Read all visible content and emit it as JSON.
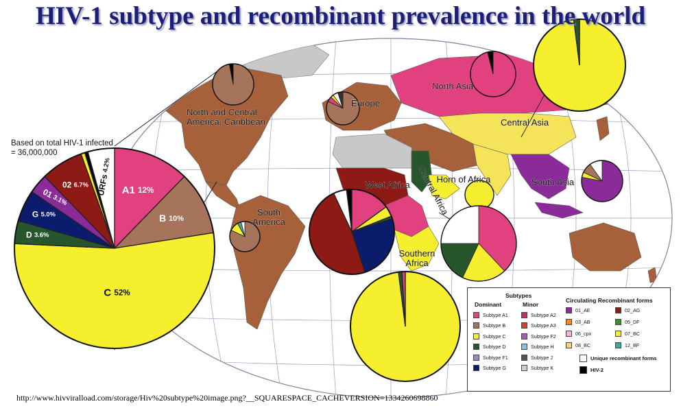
{
  "title": "HIV-1 subtype and recombinant prevalence in the world",
  "source_url": "http://www.hivviralload.com/storage/Hiv%20subtype%20image.png?__SQUARESPACE_CACHEVERSION=1334260698860",
  "chart_data": {
    "type": "pie",
    "title": "HIV-1 subtype and recombinant prevalence in the world",
    "note": "Based on total HIV-1 infected = 36,000,000",
    "global_pie": {
      "slices": [
        {
          "label": "A1",
          "value": 12,
          "display": "12%",
          "color": "#e2417f"
        },
        {
          "label": "B",
          "value": 10,
          "display": "10%",
          "color": "#a6745a"
        },
        {
          "label": "C",
          "value": 52,
          "display": "52%",
          "color": "#f5ef2d"
        },
        {
          "label": "D",
          "value": 3.6,
          "display": "3.6%",
          "color": "#27562d"
        },
        {
          "label": "G",
          "value": 5.0,
          "display": "5.0%",
          "color": "#0a1c6b"
        },
        {
          "label": "01",
          "value": 3.1,
          "display": "3.1%",
          "color": "#8b2b9a"
        },
        {
          "label": "02",
          "value": 6.7,
          "display": "6.7%",
          "color": "#8d1a14"
        },
        {
          "label": "",
          "value": 0.6,
          "display": "",
          "color": "#f5ef2d"
        },
        {
          "label": "",
          "value": 0.5,
          "display": "",
          "color": "#000000"
        },
        {
          "label": "URFs",
          "value": 4.2,
          "display": "4.2%",
          "color": "#ffffff"
        }
      ]
    },
    "regions": [
      {
        "name": "North and Central America, Caribbean",
        "label_lines": [
          "North and Central",
          "America, Caribbean"
        ],
        "slices": [
          {
            "label": "B",
            "value": 97,
            "color": "#a6745a"
          },
          {
            "label": "other",
            "value": 3,
            "color": "#000000"
          }
        ]
      },
      {
        "name": "Europe",
        "label_lines": [
          "Europe"
        ],
        "slices": [
          {
            "label": "B",
            "value": 82,
            "color": "#a6745a"
          },
          {
            "label": "A1",
            "value": 5,
            "color": "#e2417f"
          },
          {
            "label": "C",
            "value": 3,
            "color": "#f5ef2d"
          },
          {
            "label": "URFs",
            "value": 5,
            "color": "#ffffff"
          },
          {
            "label": "other",
            "value": 5,
            "color": "#333333"
          }
        ]
      },
      {
        "name": "North Asia",
        "label_lines": [
          "North Asia"
        ],
        "slices": [
          {
            "label": "A1",
            "value": 96,
            "color": "#e2417f"
          },
          {
            "label": "other",
            "value": 4,
            "color": "#000000"
          }
        ]
      },
      {
        "name": "Central Asia",
        "label_lines": [
          "Central Asia"
        ],
        "slices": [
          {
            "label": "C",
            "value": 98,
            "color": "#f5ef2d"
          },
          {
            "label": "other",
            "value": 2,
            "color": "#27562d"
          }
        ]
      },
      {
        "name": "South America",
        "label_lines": [
          "South",
          "America"
        ],
        "slices": [
          {
            "label": "B",
            "value": 82,
            "color": "#a6745a"
          },
          {
            "label": "C",
            "value": 10,
            "color": "#f5ef2d"
          },
          {
            "label": "12_BF",
            "value": 4,
            "color": "#46a39a"
          },
          {
            "label": "URFs",
            "value": 4,
            "color": "#ffffff"
          }
        ]
      },
      {
        "name": "West Africa",
        "label_lines": [
          "West Africa"
        ],
        "slices": [
          {
            "label": "A1",
            "value": 15,
            "color": "#e2417f"
          },
          {
            "label": "C",
            "value": 4,
            "color": "#f5ef2d"
          },
          {
            "label": "other",
            "value": 1,
            "color": "#27562d"
          },
          {
            "label": "G",
            "value": 25,
            "color": "#0a1c6b"
          },
          {
            "label": "02",
            "value": 48,
            "color": "#8d1a14"
          },
          {
            "label": "URFs",
            "value": 5,
            "color": "#ffffff"
          },
          {
            "label": "other2",
            "value": 2,
            "color": "#000000"
          }
        ]
      },
      {
        "name": "Horn of Africa",
        "label_lines": [
          "Horn of Africa"
        ],
        "slices": [
          {
            "label": "C",
            "value": 100,
            "color": "#f5ef2d"
          }
        ]
      },
      {
        "name": "Central Africa",
        "label_lines": [
          "Central Africa"
        ],
        "slices": [
          {
            "label": "A1",
            "value": 38,
            "color": "#e2417f"
          },
          {
            "label": "C",
            "value": 19,
            "color": "#f5ef2d"
          },
          {
            "label": "D",
            "value": 18,
            "color": "#27562d"
          },
          {
            "label": "URFs",
            "value": 25,
            "color": "#ffffff"
          }
        ]
      },
      {
        "name": "Southern Africa",
        "label_lines": [
          "Southern",
          "Africa"
        ],
        "slices": [
          {
            "label": "C",
            "value": 98,
            "color": "#f5ef2d"
          },
          {
            "label": "other",
            "value": 1,
            "color": "#27562d"
          },
          {
            "label": "A1",
            "value": 1,
            "color": "#e2417f"
          }
        ]
      },
      {
        "name": "South Asia",
        "label_lines": [
          "South Asia"
        ],
        "slices": [
          {
            "label": "01",
            "value": 78,
            "color": "#8b2b9a"
          },
          {
            "label": "C",
            "value": 4,
            "color": "#f5ef2d"
          },
          {
            "label": "B",
            "value": 8,
            "color": "#a6745a"
          },
          {
            "label": "URFs",
            "value": 10,
            "color": "#ffffff"
          }
        ]
      }
    ],
    "legend": {
      "subtypes_title": "Subtypes",
      "dominant_title": "Dominant",
      "minor_title": "Minor",
      "crf_title": "Circulating Recombinant forms",
      "dominant": [
        {
          "label": "Subtype A1",
          "color": "#e2417f"
        },
        {
          "label": "Subtype B",
          "color": "#a6745a"
        },
        {
          "label": "Subtype C",
          "color": "#f5ef2d"
        },
        {
          "label": "Subtype D",
          "color": "#27562d"
        },
        {
          "label": "Subtype F1",
          "color": "#8c8cc4"
        },
        {
          "label": "Subtype G",
          "color": "#0a1c6b"
        }
      ],
      "minor": [
        {
          "label": "Subtype A2",
          "color": "#c82a6e"
        },
        {
          "label": "Subtype A3",
          "color": "#e23b2a"
        },
        {
          "label": "Subtype F2",
          "color": "#a65cb8"
        },
        {
          "label": "Subtype H",
          "color": "#7fc7e0"
        },
        {
          "label": "Subtype J",
          "color": "#555555"
        },
        {
          "label": "Subtype K",
          "color": "#cfcfcf"
        }
      ],
      "crfs": [
        {
          "label": "01_AE",
          "color": "#8b2b9a"
        },
        {
          "label": "02_AG",
          "color": "#8d1a14"
        },
        {
          "label": "03_AB",
          "color": "#f08a24"
        },
        {
          "label": "05_DF",
          "color": "#3f8a35"
        },
        {
          "label": "06_cpx",
          "color": "#f3b6d8"
        },
        {
          "label": "07_BC",
          "color": "#f5ef2d"
        },
        {
          "label": "08_BC",
          "color": "#f6d28a"
        },
        {
          "label": "12_BF",
          "color": "#46a39a"
        }
      ],
      "urf": {
        "label": "Unique recombinant forms",
        "color": "#ffffff"
      },
      "hiv2": {
        "label": "HIV-2",
        "color": "#000000"
      }
    }
  }
}
